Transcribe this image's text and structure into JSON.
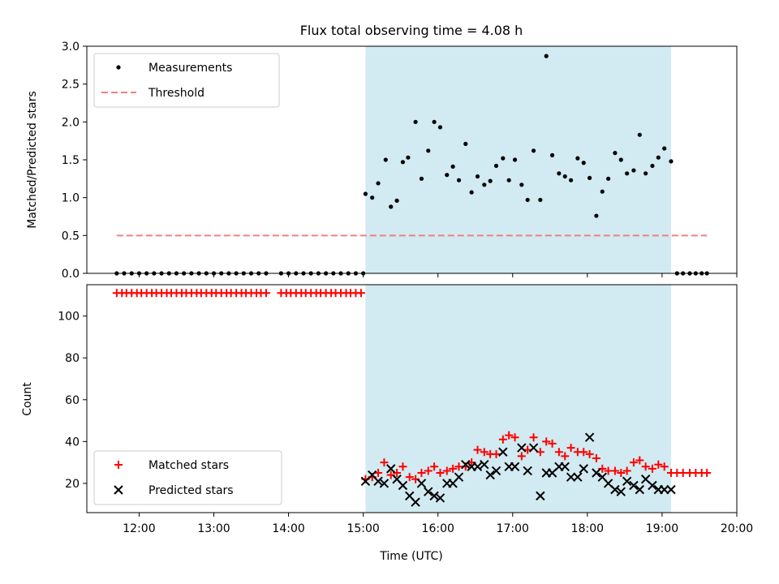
{
  "chart_data": [
    {
      "type": "scatter",
      "title": "Flux total observing time = 4.08 h",
      "xlabel": "",
      "ylabel": "Matched/Predicted stars",
      "xlim": [
        11.3,
        20.0
      ],
      "ylim": [
        0,
        3.0
      ],
      "yticks": [
        "0.0",
        "0.5",
        "1.0",
        "1.5",
        "2.0",
        "2.5",
        "3.0"
      ],
      "shaded_interval": [
        15.03,
        19.12
      ],
      "shade_color": "#add8e6",
      "legend_position": "upper-left",
      "series": [
        {
          "name": "Measurements",
          "marker": "dot",
          "color": "#000000",
          "x": [
            11.7,
            11.8,
            11.9,
            12.0,
            12.1,
            12.2,
            12.3,
            12.4,
            12.5,
            12.6,
            12.7,
            12.8,
            12.9,
            13.0,
            13.1,
            13.2,
            13.3,
            13.4,
            13.5,
            13.6,
            13.7,
            13.9,
            14.0,
            14.1,
            14.2,
            14.3,
            14.4,
            14.5,
            14.6,
            14.7,
            14.8,
            14.9,
            15.0,
            15.03,
            15.12,
            15.2,
            15.3,
            15.37,
            15.45,
            15.53,
            15.6,
            15.7,
            15.78,
            15.87,
            15.95,
            16.03,
            16.12,
            16.2,
            16.28,
            16.37,
            16.45,
            16.53,
            16.62,
            16.7,
            16.78,
            16.87,
            16.95,
            17.03,
            17.12,
            17.2,
            17.28,
            17.37,
            17.45,
            17.53,
            17.62,
            17.7,
            17.78,
            17.87,
            17.95,
            18.03,
            18.12,
            18.2,
            18.28,
            18.37,
            18.45,
            18.53,
            18.62,
            18.7,
            18.78,
            18.87,
            18.95,
            19.03,
            19.12,
            19.2,
            19.28,
            19.37,
            19.45,
            19.53,
            19.6
          ],
          "y": [
            0,
            0,
            0,
            0,
            0,
            0,
            0,
            0,
            0,
            0,
            0,
            0,
            0,
            0,
            0,
            0,
            0,
            0,
            0,
            0,
            0,
            0,
            0,
            0,
            0,
            0,
            0,
            0,
            0,
            0,
            0,
            0,
            0,
            1.05,
            1.0,
            1.19,
            1.5,
            0.88,
            0.96,
            1.47,
            1.53,
            2.0,
            1.25,
            1.62,
            2.0,
            1.93,
            1.3,
            1.41,
            1.23,
            1.71,
            1.07,
            1.28,
            1.17,
            1.22,
            1.42,
            1.52,
            1.23,
            1.5,
            1.17,
            0.97,
            1.62,
            0.97,
            2.87,
            1.56,
            1.32,
            1.28,
            1.23,
            1.52,
            1.46,
            1.26,
            0.76,
            1.08,
            1.25,
            1.59,
            1.5,
            1.32,
            1.36,
            1.83,
            1.32,
            1.42,
            1.53,
            1.65,
            1.48,
            0,
            0,
            0,
            0,
            0,
            0
          ]
        },
        {
          "name": "Threshold",
          "style": "dashed",
          "color": "#f08080",
          "x": [
            11.7,
            19.6
          ],
          "y": [
            0.5,
            0.5
          ]
        }
      ]
    },
    {
      "type": "scatter",
      "title": "",
      "xlabel": "Time (UTC)",
      "ylabel": "Count",
      "xlim": [
        11.3,
        20.0
      ],
      "ylim": [
        6,
        115
      ],
      "yticks": [
        "20",
        "40",
        "60",
        "80",
        "100"
      ],
      "xticks": [
        "12:00",
        "13:00",
        "14:00",
        "15:00",
        "16:00",
        "17:00",
        "18:00",
        "19:00",
        "20:00"
      ],
      "shaded_interval": [
        15.03,
        19.12
      ],
      "shade_color": "#add8e6",
      "legend_position": "lower-left",
      "series": [
        {
          "name": "Matched stars",
          "marker": "plus",
          "color": "#ff0000",
          "x": [
            11.7,
            11.77,
            11.83,
            11.9,
            11.97,
            12.03,
            12.1,
            12.17,
            12.23,
            12.3,
            12.37,
            12.43,
            12.5,
            12.57,
            12.63,
            12.7,
            12.77,
            12.83,
            12.9,
            12.97,
            13.03,
            13.1,
            13.17,
            13.23,
            13.3,
            13.37,
            13.43,
            13.5,
            13.57,
            13.63,
            13.7,
            13.9,
            13.97,
            14.03,
            14.1,
            14.17,
            14.23,
            14.3,
            14.37,
            14.43,
            14.5,
            14.57,
            14.63,
            14.7,
            14.77,
            14.83,
            14.9,
            14.97,
            15.03,
            15.12,
            15.2,
            15.28,
            15.37,
            15.45,
            15.53,
            15.62,
            15.7,
            15.78,
            15.87,
            15.95,
            16.03,
            16.12,
            16.2,
            16.28,
            16.37,
            16.45,
            16.53,
            16.62,
            16.7,
            16.78,
            16.87,
            16.95,
            17.03,
            17.12,
            17.2,
            17.28,
            17.37,
            17.45,
            17.53,
            17.62,
            17.7,
            17.78,
            17.87,
            17.95,
            18.03,
            18.12,
            18.2,
            18.28,
            18.37,
            18.45,
            18.53,
            18.62,
            18.7,
            18.78,
            18.87,
            18.95,
            19.03,
            19.12,
            19.2,
            19.28,
            19.37,
            19.45,
            19.53,
            19.6
          ],
          "y": [
            111,
            111,
            111,
            111,
            111,
            111,
            111,
            111,
            111,
            111,
            111,
            111,
            111,
            111,
            111,
            111,
            111,
            111,
            111,
            111,
            111,
            111,
            111,
            111,
            111,
            111,
            111,
            111,
            111,
            111,
            111,
            111,
            111,
            111,
            111,
            111,
            111,
            111,
            111,
            111,
            111,
            111,
            111,
            111,
            111,
            111,
            111,
            111,
            22,
            23,
            25,
            30,
            24,
            25,
            28,
            23,
            22,
            25,
            26,
            28,
            25,
            26,
            27,
            28,
            28,
            30,
            36,
            35,
            34,
            34,
            41,
            43,
            42,
            33,
            36,
            42,
            35,
            40,
            39,
            35,
            33,
            37,
            35,
            35,
            34,
            32,
            27,
            26,
            26,
            25,
            26,
            30,
            31,
            28,
            27,
            29,
            28,
            25,
            25,
            25,
            25,
            25,
            25,
            25
          ]
        },
        {
          "name": "Predicted stars",
          "marker": "x",
          "color": "#000000",
          "x": [
            15.03,
            15.12,
            15.2,
            15.28,
            15.37,
            15.45,
            15.53,
            15.62,
            15.7,
            15.78,
            15.87,
            15.95,
            16.03,
            16.12,
            16.2,
            16.28,
            16.37,
            16.45,
            16.53,
            16.62,
            16.7,
            16.78,
            16.87,
            16.95,
            17.03,
            17.12,
            17.2,
            17.28,
            17.37,
            17.45,
            17.53,
            17.62,
            17.7,
            17.78,
            17.87,
            17.95,
            18.03,
            18.12,
            18.2,
            18.28,
            18.37,
            18.45,
            18.53,
            18.62,
            18.7,
            18.78,
            18.87,
            18.95,
            19.03,
            19.12
          ],
          "y": [
            21,
            24,
            21,
            20,
            27,
            22,
            19,
            14,
            11,
            20,
            16,
            14,
            13,
            20,
            20,
            23,
            29,
            28,
            28,
            29,
            24,
            26,
            35,
            28,
            28,
            37,
            26,
            37,
            14,
            25,
            25,
            28,
            28,
            23,
            23,
            27,
            42,
            25,
            23,
            20,
            17,
            16,
            21,
            19,
            17,
            22,
            19,
            17,
            17,
            17
          ]
        }
      ]
    }
  ]
}
